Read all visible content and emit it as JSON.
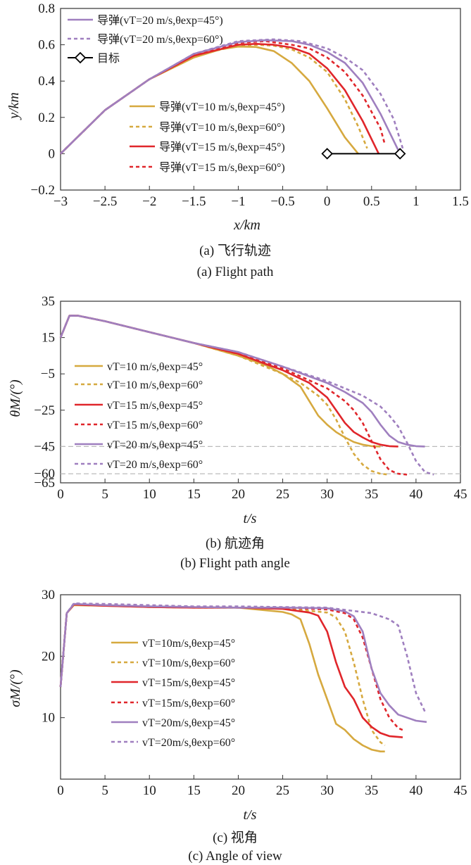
{
  "colors": {
    "gold": "#d6a93f",
    "red": "#e0262b",
    "purple": "#9f7fbf",
    "black": "#000000",
    "ref": "#bbbbbb"
  },
  "panels": [
    {
      "caption_cn": "(a) 飞行轨迹",
      "caption_en": "(a) Flight path",
      "xlabel": "x/km",
      "ylabel": "y/km",
      "xticks": [
        "−3",
        "−2.5",
        "−2",
        "−1.5",
        "−1",
        "−0.5",
        "0",
        "0.5",
        "1",
        "1.5"
      ],
      "yticks": [
        "0.8",
        "0.6",
        "0.4",
        "0.2",
        "0",
        "−0.2"
      ],
      "legend_top": [
        "导弹(vT=20 m/s,θexp=45°)",
        "导弹(vT=20 m/s,θexp=60°)",
        "目标"
      ],
      "legend_bottom": [
        "导弹(vT=10 m/s,θexp=45°)",
        "导弹(vT=10 m/s,θexp=60°)",
        "导弹(vT=15 m/s,θexp=45°)",
        "导弹(vT=15 m/s,θexp=60°)"
      ]
    },
    {
      "caption_cn": "(b) 航迹角",
      "caption_en": "(b) Flight path angle",
      "xlabel": "t/s",
      "ylabel": "θM/(°)",
      "xticks": [
        "0",
        "5",
        "10",
        "15",
        "20",
        "25",
        "30",
        "35",
        "40",
        "45"
      ],
      "yticks": [
        "35",
        "15",
        "−5",
        "−25",
        "−45",
        "−60",
        "−65"
      ],
      "legend": [
        "vT=10 m/s,θexp=45°",
        "vT=10 m/s,θexp=60°",
        "vT=15 m/s,θexp=45°",
        "vT=15 m/s,θexp=60°",
        "vT=20 m/s,θexp=45°",
        "vT=20 m/s,θexp=60°"
      ]
    },
    {
      "caption_cn": "(c) 视角",
      "caption_en": "(c) Angle of view",
      "xlabel": "t/s",
      "ylabel": "σM/(°)",
      "xticks": [
        "0",
        "5",
        "10",
        "15",
        "20",
        "25",
        "30",
        "35",
        "40",
        "45"
      ],
      "yticks": [
        "30",
        "20",
        "10"
      ],
      "legend": [
        "vT=10m/s,θexp=45°",
        "vT=10m/s,θexp=60°",
        "vT=15m/s,θexp=45°",
        "vT=15m/s,θexp=60°",
        "vT=20m/s,θexp=45°",
        "vT=20m/s,θexp=60°"
      ]
    }
  ],
  "chart_data": [
    {
      "type": "line",
      "title": "",
      "xlabel": "x/km",
      "ylabel": "y/km",
      "xlim": [
        -3,
        1.5
      ],
      "ylim": [
        -0.2,
        0.8
      ],
      "series": [
        {
          "name": "导弹(vT=10 m/s,θexp=45°)",
          "color": "#d6a93f",
          "dash": false,
          "x": [
            -3,
            -2.5,
            -2,
            -1.5,
            -1.2,
            -1,
            -0.8,
            -0.6,
            -0.4,
            -0.2,
            0,
            0.2,
            0.35
          ],
          "y": [
            0,
            0.24,
            0.41,
            0.53,
            0.575,
            0.59,
            0.588,
            0.565,
            0.5,
            0.4,
            0.25,
            0.09,
            0
          ]
        },
        {
          "name": "导弹(vT=10 m/s,θexp=60°)",
          "color": "#d6a93f",
          "dash": true,
          "x": [
            -3,
            -2.5,
            -2,
            -1.5,
            -1,
            -0.8,
            -0.6,
            -0.4,
            -0.2,
            0,
            0.2,
            0.35,
            0.45
          ],
          "y": [
            0,
            0.24,
            0.41,
            0.54,
            0.595,
            0.6,
            0.595,
            0.575,
            0.53,
            0.45,
            0.3,
            0.15,
            0.03
          ]
        },
        {
          "name": "导弹(vT=15 m/s,θexp=45°)",
          "color": "#e0262b",
          "dash": false,
          "x": [
            -3,
            -2.5,
            -2,
            -1.5,
            -1,
            -0.8,
            -0.6,
            -0.4,
            -0.2,
            0,
            0.2,
            0.4,
            0.58
          ],
          "y": [
            0,
            0.24,
            0.41,
            0.54,
            0.6,
            0.605,
            0.6,
            0.585,
            0.55,
            0.47,
            0.35,
            0.18,
            0
          ]
        },
        {
          "name": "导弹(vT=15 m/s,θexp=60°)",
          "color": "#e0262b",
          "dash": true,
          "x": [
            -3,
            -2.5,
            -2,
            -1.5,
            -1,
            -0.7,
            -0.4,
            -0.2,
            0,
            0.2,
            0.4,
            0.6,
            0.65
          ],
          "y": [
            0,
            0.24,
            0.41,
            0.54,
            0.61,
            0.62,
            0.6,
            0.58,
            0.53,
            0.45,
            0.32,
            0.14,
            0.05
          ]
        },
        {
          "name": "导弹(vT=20 m/s,θexp=45°)",
          "color": "#9f7fbf",
          "dash": false,
          "x": [
            -3,
            -2.5,
            -2,
            -1.5,
            -1,
            -0.7,
            -0.4,
            -0.2,
            0,
            0.2,
            0.4,
            0.6,
            0.8
          ],
          "y": [
            0,
            0.24,
            0.41,
            0.55,
            0.615,
            0.625,
            0.62,
            0.6,
            0.56,
            0.5,
            0.39,
            0.22,
            0.02
          ]
        },
        {
          "name": "导弹(vT=20 m/s,θexp=60°)",
          "color": "#9f7fbf",
          "dash": true,
          "x": [
            -3,
            -2.5,
            -2,
            -1.5,
            -1,
            -0.6,
            -0.3,
            0,
            0.2,
            0.4,
            0.6,
            0.75,
            0.85
          ],
          "y": [
            0,
            0.24,
            0.41,
            0.55,
            0.62,
            0.63,
            0.62,
            0.58,
            0.53,
            0.46,
            0.33,
            0.19,
            0.03
          ]
        },
        {
          "name": "目标",
          "color": "#000000",
          "dash": false,
          "marker": "diamond",
          "x": [
            0,
            0.82
          ],
          "y": [
            0,
            0
          ]
        }
      ]
    },
    {
      "type": "line",
      "title": "",
      "xlabel": "t/s",
      "ylabel": "θM/(°)",
      "xlim": [
        0,
        45
      ],
      "ylim": [
        -65,
        35
      ],
      "reference_lines": [
        -45,
        -60
      ],
      "series": [
        {
          "name": "vT=10 m/s,θexp=45°",
          "color": "#d6a93f",
          "dash": false,
          "x": [
            0,
            1,
            2,
            5,
            10,
            15,
            20,
            23,
            25,
            27,
            28,
            29,
            30,
            31,
            32,
            33,
            34,
            35,
            36
          ],
          "y": [
            15,
            27,
            27,
            24,
            18,
            12,
            5,
            0,
            -5,
            -12,
            -20,
            -28,
            -33,
            -37,
            -40,
            -42.5,
            -44,
            -44.8,
            -45
          ]
        },
        {
          "name": "vT=10 m/s,θexp=60°",
          "color": "#d6a93f",
          "dash": true,
          "x": [
            0,
            1,
            2,
            5,
            10,
            15,
            20,
            25,
            27,
            29,
            30,
            31,
            32,
            33,
            34,
            35,
            36,
            37
          ],
          "y": [
            15,
            27,
            27,
            24,
            18,
            12,
            5,
            -5,
            -10,
            -17,
            -22,
            -30,
            -40,
            -49,
            -55,
            -58.5,
            -60,
            -60.5
          ]
        },
        {
          "name": "vT=15 m/s,θexp=45°",
          "color": "#e0262b",
          "dash": false,
          "x": [
            0,
            1,
            2,
            5,
            10,
            15,
            20,
            25,
            28,
            30,
            31,
            32,
            33,
            34,
            35,
            36,
            37,
            38
          ],
          "y": [
            15,
            27,
            27,
            24,
            18,
            12,
            6,
            -3,
            -10,
            -18,
            -25,
            -32,
            -37,
            -40,
            -42.5,
            -44,
            -44.8,
            -45
          ]
        },
        {
          "name": "vT=15 m/s,θexp=60°",
          "color": "#e0262b",
          "dash": true,
          "x": [
            0,
            1,
            2,
            5,
            10,
            15,
            20,
            25,
            30,
            32,
            33,
            34,
            35,
            36,
            37,
            38,
            39
          ],
          "y": [
            15,
            27,
            27,
            24,
            18,
            12,
            6,
            -2,
            -13,
            -20,
            -25,
            -32,
            -42,
            -52,
            -58,
            -60,
            -60.5
          ]
        },
        {
          "name": "vT=20 m/s,θexp=45°",
          "color": "#9f7fbf",
          "dash": false,
          "x": [
            0,
            1,
            2,
            5,
            10,
            15,
            20,
            25,
            30,
            32,
            34,
            35,
            36,
            37,
            38,
            39,
            40,
            41
          ],
          "y": [
            15,
            27,
            27,
            24,
            18,
            12,
            7,
            -1,
            -10,
            -15,
            -21,
            -26,
            -33,
            -39,
            -42.5,
            -44,
            -44.8,
            -45
          ]
        },
        {
          "name": "vT=20 m/s,θexp=60°",
          "color": "#9f7fbf",
          "dash": true,
          "x": [
            0,
            1,
            2,
            5,
            10,
            15,
            20,
            25,
            30,
            34,
            36,
            37,
            38,
            39,
            40,
            41,
            42
          ],
          "y": [
            15,
            27,
            27,
            24,
            18,
            12,
            7,
            -1,
            -9,
            -17,
            -23,
            -28,
            -34,
            -43,
            -53,
            -59,
            -60.5
          ]
        }
      ]
    },
    {
      "type": "line",
      "title": "",
      "xlabel": "t/s",
      "ylabel": "σM/(°)",
      "xlim": [
        0,
        45
      ],
      "ylim": [
        0,
        30
      ],
      "series": [
        {
          "name": "vT=10m/s,θexp=45°",
          "color": "#d6a93f",
          "dash": false,
          "x": [
            0,
            0.7,
            1.5,
            5,
            10,
            15,
            20,
            25,
            26,
            27,
            28,
            29,
            30,
            31,
            32,
            33,
            34,
            35,
            36,
            36.5
          ],
          "y": [
            15,
            27,
            28.3,
            28.2,
            28,
            27.9,
            27.9,
            27.2,
            26.8,
            26,
            22,
            17,
            13,
            9,
            8,
            6.5,
            5.5,
            4.8,
            4.5,
            4.5
          ]
        },
        {
          "name": "vT=10m/s,θexp=60°",
          "color": "#d6a93f",
          "dash": true,
          "x": [
            0,
            0.7,
            1.5,
            5,
            10,
            15,
            20,
            25,
            30,
            31,
            32,
            33,
            34,
            35,
            36,
            36.5
          ],
          "y": [
            15,
            27,
            28.4,
            28.3,
            28,
            27.9,
            27.9,
            27.8,
            27.1,
            26.3,
            24,
            19,
            13,
            8,
            6,
            5.5
          ]
        },
        {
          "name": "vT=15m/s,θexp=45°",
          "color": "#e0262b",
          "dash": false,
          "x": [
            0,
            0.7,
            1.5,
            5,
            10,
            15,
            20,
            25,
            28,
            29,
            30,
            31,
            32,
            33,
            34,
            35,
            36,
            37,
            38.5
          ],
          "y": [
            15,
            27,
            28.4,
            28.2,
            28,
            27.9,
            27.9,
            27.7,
            27.1,
            26.6,
            24,
            19,
            15,
            13,
            10,
            8.5,
            7.5,
            7,
            6.8
          ]
        },
        {
          "name": "vT=15m/s,θexp=60°",
          "color": "#e0262b",
          "dash": true,
          "x": [
            0,
            0.7,
            1.5,
            5,
            10,
            15,
            20,
            25,
            30,
            32,
            33,
            34,
            35,
            36,
            37,
            38,
            38.5
          ],
          "y": [
            15,
            27,
            28.5,
            28.3,
            28.1,
            28,
            27.9,
            27.9,
            27.6,
            27,
            26,
            23,
            18,
            13,
            10,
            8.3,
            8
          ]
        },
        {
          "name": "vT=20m/s,θexp=45°",
          "color": "#9f7fbf",
          "dash": false,
          "x": [
            0,
            0.7,
            1.5,
            5,
            10,
            15,
            20,
            25,
            30,
            32,
            33,
            34,
            35,
            36,
            37,
            38,
            39,
            40,
            41.2
          ],
          "y": [
            15,
            27,
            28.5,
            28.3,
            28.1,
            28,
            27.9,
            27.9,
            27.8,
            27.3,
            26.5,
            24,
            18,
            14,
            12,
            10.5,
            10,
            9.5,
            9.3
          ]
        },
        {
          "name": "vT=20m/s,θexp=60°",
          "color": "#9f7fbf",
          "dash": true,
          "x": [
            0,
            0.7,
            1.5,
            5,
            10,
            15,
            20,
            25,
            30,
            35,
            37,
            38,
            39,
            40,
            41,
            41.2
          ],
          "y": [
            15,
            27,
            28.6,
            28.5,
            28.3,
            28.1,
            28.1,
            28,
            27.9,
            27,
            26,
            25,
            20,
            14,
            11,
            11
          ]
        }
      ]
    }
  ]
}
